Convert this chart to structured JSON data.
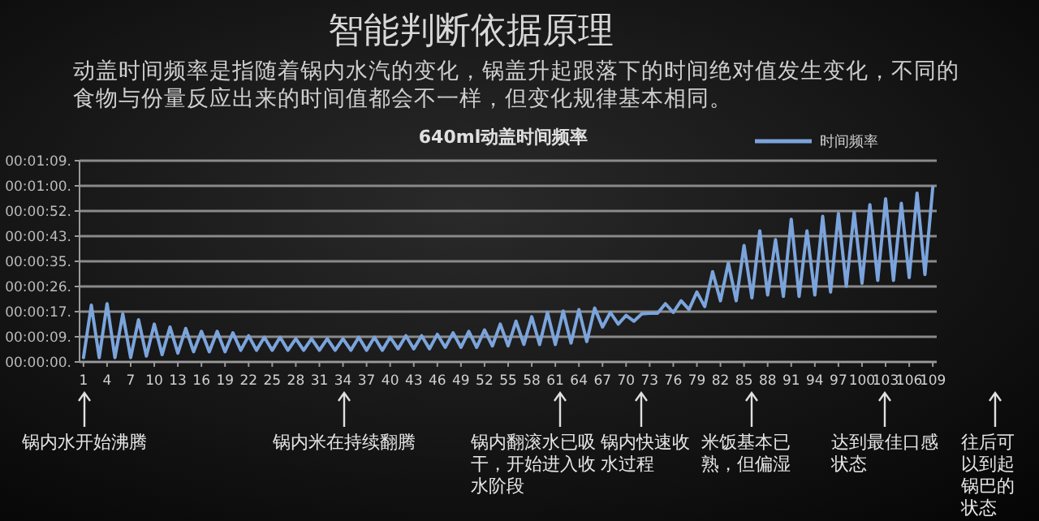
{
  "chart_data": {
    "type": "line",
    "title": "智能判断依据原理",
    "subtitle": "动盖时间频率是指随着锅内水汽的变化，锅盖升起跟落下的时间绝对值发生变化，不同的食物与份量反应出来的时间值都会不一样，但变化规律基本相同。",
    "x": [
      1,
      2,
      3,
      4,
      5,
      6,
      7,
      8,
      9,
      10,
      11,
      12,
      13,
      14,
      15,
      16,
      17,
      18,
      19,
      20,
      21,
      22,
      23,
      24,
      25,
      26,
      27,
      28,
      29,
      30,
      31,
      32,
      33,
      34,
      35,
      36,
      37,
      38,
      39,
      40,
      41,
      42,
      43,
      44,
      45,
      46,
      47,
      48,
      49,
      50,
      51,
      52,
      53,
      54,
      55,
      56,
      57,
      58,
      59,
      60,
      61,
      62,
      63,
      64,
      65,
      66,
      67,
      68,
      69,
      70,
      71,
      72,
      73,
      74,
      75,
      76,
      77,
      78,
      79,
      80,
      81,
      82,
      83,
      84,
      85,
      86,
      87,
      88,
      89,
      90,
      91,
      92,
      93,
      94,
      95,
      96,
      97,
      98,
      99,
      100,
      101,
      102,
      103,
      104,
      105,
      106,
      107,
      108,
      109
    ],
    "series": [
      {
        "name": "时间频率",
        "color": "#7ba4dc",
        "values": [
          1.5,
          19.5,
          1.5,
          20,
          1.5,
          16.5,
          1.5,
          14.5,
          2,
          13,
          2.5,
          12,
          3,
          11.5,
          3.5,
          10.5,
          3.5,
          10.5,
          3.5,
          10,
          4,
          9,
          4,
          8.5,
          4,
          8.5,
          4,
          8,
          4,
          8,
          4,
          8,
          4,
          8,
          4,
          8.5,
          4,
          8.5,
          4,
          8.5,
          4.5,
          9,
          4.5,
          9,
          4.5,
          9.5,
          5,
          10,
          5,
          10.5,
          5,
          11,
          5.5,
          13,
          5.5,
          14,
          6,
          15.5,
          6,
          17,
          6,
          17.5,
          6.5,
          18,
          7,
          18.5,
          12,
          17,
          13,
          16,
          14,
          16.5,
          16.7,
          16.7,
          20,
          17,
          21,
          18,
          24,
          19,
          31,
          21,
          34,
          21,
          40,
          22,
          45,
          23,
          42,
          22.5,
          49,
          22.5,
          45,
          23,
          50,
          24,
          51,
          26,
          51.5,
          27,
          54,
          28,
          56,
          28,
          54.5,
          29,
          58,
          30,
          60
        ]
      }
    ],
    "xlim": [
      0.5,
      109.5
    ],
    "xticks": [
      1,
      4,
      7,
      10,
      13,
      16,
      19,
      22,
      25,
      28,
      31,
      34,
      37,
      40,
      43,
      46,
      49,
      52,
      55,
      58,
      61,
      64,
      67,
      70,
      73,
      76,
      79,
      82,
      85,
      88,
      91,
      94,
      97,
      100,
      103,
      106,
      109
    ],
    "ylim": [
      0,
      69.12
    ],
    "yticks": [
      {
        "value": 0,
        "label": "00:00:00."
      },
      {
        "value": 8.64,
        "label": "00:00:09."
      },
      {
        "value": 17.28,
        "label": "00:00:17."
      },
      {
        "value": 25.92,
        "label": "00:00:26."
      },
      {
        "value": 34.56,
        "label": "00:00:35."
      },
      {
        "value": 43.2,
        "label": "00:00:43."
      },
      {
        "value": 51.84,
        "label": "00:00:52."
      },
      {
        "value": 60.48,
        "label": "00:01:00."
      },
      {
        "value": 69.12,
        "label": "00:01:09."
      }
    ],
    "grid": "y",
    "legend": "top right",
    "annotations": [
      "640ml动盖时间频率",
      "锅内水开始沸腾",
      "锅内米在持续翻腾",
      "锅内翻滚水已吸干，开始进入收水阶段",
      "锅内快速收水过程",
      "米饭基本已熟，但偏湿",
      "达到最佳口感状态",
      "往后可以到起锅巴的状态"
    ]
  }
}
